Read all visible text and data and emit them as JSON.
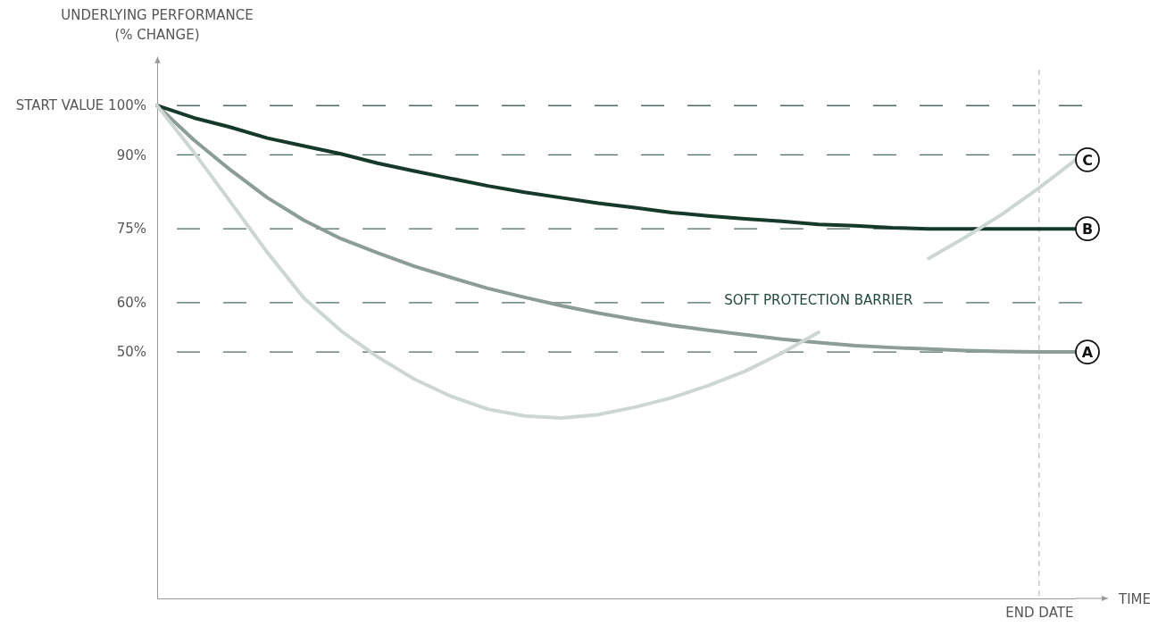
{
  "chart_data": {
    "type": "line",
    "ylabel": "UNDERLYING PERFORMANCE\n(% CHANGE)",
    "xlabel": "TIME",
    "categories": [
      null,
      null,
      null,
      null,
      null,
      null,
      null,
      null,
      null,
      null,
      null,
      null,
      null,
      null,
      null,
      null,
      null,
      null,
      null,
      null,
      null,
      null,
      null,
      null,
      "END DATE",
      null
    ],
    "ylim": [
      0,
      110
    ],
    "yticks": [
      {
        "value": 100,
        "label": "START VALUE 100%"
      },
      {
        "value": 90,
        "label": "90%"
      },
      {
        "value": 75,
        "label": "75%"
      },
      {
        "value": 60,
        "label": "60%"
      },
      {
        "value": 50,
        "label": "50%"
      }
    ],
    "grid": "y",
    "legend": false,
    "marker": "none",
    "line_style": "solid",
    "series": [
      {
        "name": "A",
        "color": "#8b9d95",
        "values": [
          100,
          93,
          86.9,
          81.3,
          76.7,
          73,
          70.1,
          67.4,
          65.1,
          62.9,
          61.1,
          59.4,
          57.9,
          56.6,
          55.4,
          54.4,
          53.5,
          52.6,
          51.9,
          51.3,
          50.9,
          50.6,
          50.3,
          50.1,
          50,
          50
        ]
      },
      {
        "name": "B",
        "color": "#163a2a",
        "values": [
          100,
          97.5,
          95.6,
          93.4,
          91.8,
          90.2,
          88.3,
          86.7,
          85.2,
          83.7,
          82.4,
          81.3,
          80.2,
          79.3,
          78.3,
          77.6,
          77,
          76.5,
          75.9,
          75.6,
          75.2,
          75,
          75,
          75,
          75,
          75
        ]
      },
      {
        "name": "C",
        "color": "#cdd7d2",
        "values": [
          100,
          90.5,
          80.4,
          70.2,
          60.9,
          54.3,
          49,
          44.5,
          41,
          38.4,
          37,
          36.6,
          37.3,
          38.8,
          40.7,
          43.2,
          46.1,
          49.8,
          54,
          null,
          null,
          69,
          73.3,
          78,
          83.3,
          89
        ]
      }
    ],
    "ref_lines": [
      {
        "axis": "x",
        "value": "END DATE",
        "color": "#aaaaaa",
        "line_style": "dashed"
      }
    ],
    "annotations": [
      "SOFT PROTECTION BARRIER"
    ]
  }
}
